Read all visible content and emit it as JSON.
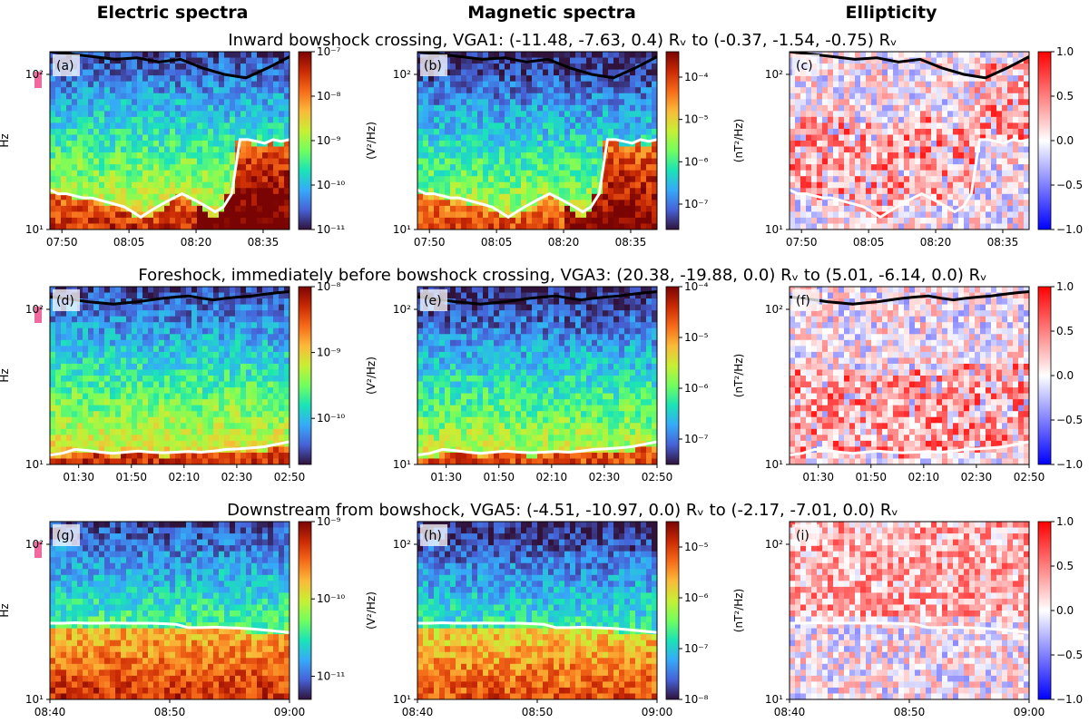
{
  "figure": {
    "column_titles": [
      "Electric spectra",
      "Magnetic spectra",
      "Ellipticity"
    ],
    "row_titles": [
      "Inward bowshock crossing, VGA1: (-11.48, -7.63, 0.4) Rᵥ to (-0.37, -1.54, -0.75) Rᵥ",
      "Foreshock, immediately before bowshock crossing, VGA3: (20.38, -19.88, 0.0) Rᵥ to (5.01, -6.14, 0.0) Rᵥ",
      "Downstream from bowshock, VGA5: (-4.51, -10.97, 0.0) Rᵥ to (-2.17, -7.01, 0.0) Rᵥ"
    ],
    "ylabel": "Hz",
    "colors": {
      "frame": "#000000",
      "white_trace": "#ffffff",
      "black_trace": "#000000",
      "pink_marker": "#f06aa0"
    }
  },
  "chart_data": [
    {
      "type": "heatmap",
      "panel": "(a)",
      "row": 0,
      "col": 0,
      "kind": "electric",
      "xlabel": "",
      "ylabel": "Hz",
      "yscale": "log",
      "ylim": [
        10,
        140
      ],
      "yticks": [
        "10¹",
        "10²"
      ],
      "yticks_values": [
        10,
        100
      ],
      "xticks": [
        "07:50",
        "08:05",
        "08:20",
        "08:35"
      ],
      "xticks_values": [
        0.05,
        0.33,
        0.61,
        0.89
      ],
      "colorbar_label": "(V²/Hz)",
      "colorbar_ticks": [
        "10⁻⁷",
        "10⁻⁸",
        "10⁻⁹",
        "10⁻¹⁰",
        "10⁻¹¹"
      ],
      "colorbar_values": [
        -7,
        -8,
        -9,
        -10,
        -11
      ],
      "colorbar_range": [
        -11,
        -7
      ],
      "white_trace_hz": [
        18,
        17,
        17,
        16.5,
        16,
        16,
        15.5,
        15,
        14.5,
        14,
        13,
        12,
        13,
        14,
        15,
        16,
        17,
        16,
        15,
        14,
        13,
        14,
        17,
        38,
        38,
        37,
        36,
        38,
        37,
        38
      ],
      "black_trace_hz": [
        140,
        135,
        130,
        125,
        128,
        120,
        125,
        110,
        100,
        95,
        110,
        130
      ]
    },
    {
      "type": "heatmap",
      "panel": "(b)",
      "row": 0,
      "col": 1,
      "kind": "magnetic",
      "xlabel": "",
      "ylabel": "",
      "yscale": "log",
      "ylim": [
        10,
        140
      ],
      "yticks": [
        "10¹",
        "10²"
      ],
      "yticks_values": [
        10,
        100
      ],
      "xticks": [
        "07:50",
        "08:05",
        "08:20",
        "08:35"
      ],
      "xticks_values": [
        0.05,
        0.33,
        0.61,
        0.89
      ],
      "colorbar_label": "(nT²/Hz)",
      "colorbar_ticks": [
        "10⁻⁴",
        "10⁻⁵",
        "10⁻⁶",
        "10⁻⁷"
      ],
      "colorbar_values": [
        -4,
        -5,
        -6,
        -7
      ],
      "colorbar_range": [
        -7.6,
        -3.4
      ],
      "white_trace_hz": [
        18,
        17,
        17,
        16.5,
        16,
        16,
        15.5,
        15,
        14.5,
        14,
        13,
        12,
        13,
        14,
        15,
        16,
        17,
        16,
        15,
        14,
        13,
        14,
        17,
        38,
        38,
        37,
        36,
        38,
        37,
        38
      ],
      "black_trace_hz": [
        140,
        135,
        130,
        125,
        128,
        120,
        125,
        110,
        100,
        95,
        110,
        130
      ]
    },
    {
      "type": "heatmap",
      "panel": "(c)",
      "row": 0,
      "col": 2,
      "kind": "ellipticity",
      "xlabel": "",
      "ylabel": "",
      "yscale": "log",
      "ylim": [
        10,
        140
      ],
      "yticks": [
        "10¹",
        "10²"
      ],
      "yticks_values": [
        10,
        100
      ],
      "xticks": [
        "07:50",
        "08:05",
        "08:20",
        "08:35"
      ],
      "xticks_values": [
        0.05,
        0.33,
        0.61,
        0.89
      ],
      "colorbar_label": "",
      "colorbar_ticks": [
        "1.0",
        "0.5",
        "0.0",
        "−0.5",
        "−1.0"
      ],
      "colorbar_values": [
        1.0,
        0.5,
        0.0,
        -0.5,
        -1.0
      ],
      "colorbar_range": [
        -1,
        1
      ],
      "white_trace_hz": [
        18,
        17,
        17,
        16.5,
        16,
        16,
        15.5,
        15,
        14.5,
        14,
        13,
        12,
        13,
        14,
        15,
        16,
        17,
        16,
        15,
        14,
        13,
        14,
        17,
        38,
        38,
        37,
        36,
        38,
        37,
        38
      ],
      "black_trace_hz": [
        140,
        135,
        130,
        125,
        128,
        120,
        125,
        110,
        100,
        95,
        110,
        130
      ]
    },
    {
      "type": "heatmap",
      "panel": "(d)",
      "row": 1,
      "col": 0,
      "kind": "electric",
      "xlabel": "",
      "ylabel": "Hz",
      "yscale": "log",
      "ylim": [
        10,
        140
      ],
      "yticks": [
        "10¹",
        "10²"
      ],
      "yticks_values": [
        10,
        100
      ],
      "xticks": [
        "01:30",
        "01:50",
        "02:10",
        "02:30",
        "02:50"
      ],
      "xticks_values": [
        0.12,
        0.34,
        0.56,
        0.78,
        1.0
      ],
      "colorbar_label": "(V²/Hz)",
      "colorbar_ticks": [
        "10⁻⁸",
        "10⁻⁹",
        "10⁻¹⁰"
      ],
      "colorbar_values": [
        -8,
        -9,
        -10
      ],
      "colorbar_range": [
        -10.7,
        -8
      ],
      "white_trace_hz": [
        11.5,
        11.8,
        12.5,
        12.3,
        12,
        11.8,
        12,
        12.2,
        12,
        11.9,
        12,
        12.1,
        12,
        12.2,
        12.5,
        12.6,
        12.8,
        13,
        13.5,
        14
      ],
      "black_trace_hz": [
        120,
        118,
        115,
        112,
        110,
        108,
        110,
        112,
        115,
        118,
        120,
        122,
        118,
        115,
        118,
        120,
        122,
        125,
        128,
        130
      ]
    },
    {
      "type": "heatmap",
      "panel": "(e)",
      "row": 1,
      "col": 1,
      "kind": "magnetic",
      "xlabel": "",
      "ylabel": "",
      "yscale": "log",
      "ylim": [
        10,
        140
      ],
      "yticks": [
        "10¹",
        "10²"
      ],
      "yticks_values": [
        10,
        100
      ],
      "xticks": [
        "01:30",
        "01:50",
        "02:10",
        "02:30",
        "02:50"
      ],
      "xticks_values": [
        0.12,
        0.34,
        0.56,
        0.78,
        1.0
      ],
      "colorbar_label": "(nT²/Hz)",
      "colorbar_ticks": [
        "10⁻⁴",
        "10⁻⁵",
        "10⁻⁶",
        "10⁻⁷"
      ],
      "colorbar_values": [
        -4,
        -5,
        -6,
        -7
      ],
      "colorbar_range": [
        -7.5,
        -4
      ],
      "white_trace_hz": [
        11.5,
        11.8,
        12.5,
        12.3,
        12,
        11.8,
        12,
        12.2,
        12,
        11.9,
        12,
        12.1,
        12,
        12.2,
        12.5,
        12.6,
        12.8,
        13,
        13.5,
        14
      ],
      "black_trace_hz": [
        120,
        118,
        115,
        112,
        110,
        108,
        110,
        112,
        115,
        118,
        120,
        122,
        118,
        115,
        118,
        120,
        122,
        125,
        128,
        130
      ]
    },
    {
      "type": "heatmap",
      "panel": "(f)",
      "row": 1,
      "col": 2,
      "kind": "ellipticity",
      "xlabel": "",
      "ylabel": "",
      "yscale": "log",
      "ylim": [
        10,
        140
      ],
      "yticks": [
        "10¹",
        "10²"
      ],
      "yticks_values": [
        10,
        100
      ],
      "xticks": [
        "01:30",
        "01:50",
        "02:10",
        "02:30",
        "02:50"
      ],
      "xticks_values": [
        0.12,
        0.34,
        0.56,
        0.78,
        1.0
      ],
      "colorbar_label": "",
      "colorbar_ticks": [
        "1.0",
        "0.5",
        "0.0",
        "−0.5",
        "−1.0"
      ],
      "colorbar_values": [
        1.0,
        0.5,
        0.0,
        -0.5,
        -1.0
      ],
      "colorbar_range": [
        -1,
        1
      ],
      "white_trace_hz": [
        11.5,
        11.8,
        12.5,
        12.3,
        12,
        11.8,
        12,
        12.2,
        12,
        11.9,
        12,
        12.1,
        12,
        12.2,
        12.5,
        12.6,
        12.8,
        13,
        13.5,
        14
      ],
      "black_trace_hz": [
        120,
        118,
        115,
        112,
        110,
        108,
        110,
        112,
        115,
        118,
        120,
        122,
        118,
        115,
        118,
        120,
        122,
        125,
        128,
        130
      ]
    },
    {
      "type": "heatmap",
      "panel": "(g)",
      "row": 2,
      "col": 0,
      "kind": "electric",
      "xlabel": "",
      "ylabel": "Hz",
      "yscale": "log",
      "ylim": [
        10,
        140
      ],
      "yticks": [
        "10¹",
        "10²"
      ],
      "yticks_values": [
        10,
        100
      ],
      "xticks": [
        "08:40",
        "08:50",
        "09:00"
      ],
      "xticks_values": [
        0.0,
        0.5,
        1.0
      ],
      "colorbar_label": "(V²/Hz)",
      "colorbar_ticks": [
        "10⁻⁹",
        "10⁻¹⁰",
        "10⁻¹¹"
      ],
      "colorbar_values": [
        -9,
        -10,
        -11
      ],
      "colorbar_range": [
        -11.3,
        -9
      ],
      "white_trace_hz": [
        31,
        31,
        31.2,
        31,
        31,
        31.1,
        31,
        31,
        31,
        30.8,
        30.5,
        29,
        29,
        29.2,
        29,
        28.8,
        28.5,
        28,
        27.5,
        27
      ],
      "black_trace_hz": []
    },
    {
      "type": "heatmap",
      "panel": "(h)",
      "row": 2,
      "col": 1,
      "kind": "magnetic",
      "xlabel": "",
      "ylabel": "",
      "yscale": "log",
      "ylim": [
        10,
        140
      ],
      "yticks": [
        "10¹",
        "10²"
      ],
      "yticks_values": [
        10,
        100
      ],
      "xticks": [
        "08:40",
        "08:50",
        "09:00"
      ],
      "xticks_values": [
        0.0,
        0.5,
        1.0
      ],
      "colorbar_label": "(nT²/Hz)",
      "colorbar_ticks": [
        "10⁻⁵",
        "10⁻⁶",
        "10⁻⁷",
        "10⁻⁸"
      ],
      "colorbar_values": [
        -5,
        -6,
        -7,
        -8
      ],
      "colorbar_range": [
        -8,
        -4.5
      ],
      "white_trace_hz": [
        31,
        31,
        31.2,
        31,
        31,
        31.1,
        31,
        31,
        31,
        30.8,
        30.5,
        29,
        29,
        29.2,
        29,
        28.8,
        28.5,
        28,
        27.5,
        27
      ],
      "black_trace_hz": []
    },
    {
      "type": "heatmap",
      "panel": "(i)",
      "row": 2,
      "col": 2,
      "kind": "ellipticity",
      "xlabel": "",
      "ylabel": "",
      "yscale": "log",
      "ylim": [
        10,
        140
      ],
      "yticks": [
        "10¹",
        "10²"
      ],
      "yticks_values": [
        10,
        100
      ],
      "xticks": [
        "08:40",
        "08:50",
        "09:00"
      ],
      "xticks_values": [
        0.0,
        0.5,
        1.0
      ],
      "colorbar_label": "",
      "colorbar_ticks": [
        "1.0",
        "0.5",
        "0.0",
        "−0.5",
        "−1.0"
      ],
      "colorbar_values": [
        1.0,
        0.5,
        0.0,
        -0.5,
        -1.0
      ],
      "colorbar_range": [
        -1,
        1
      ],
      "white_trace_hz": [
        31,
        31,
        31.2,
        31,
        31,
        31.1,
        31,
        31,
        31,
        30.8,
        30.5,
        29,
        29,
        29.2,
        29,
        28.8,
        28.5,
        28,
        27.5,
        27
      ],
      "black_trace_hz": []
    }
  ]
}
